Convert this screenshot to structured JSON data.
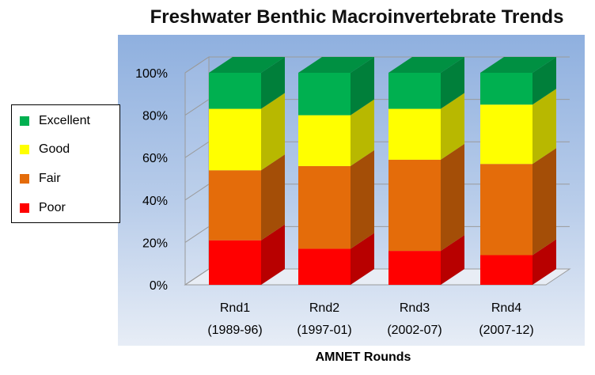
{
  "chart_data": {
    "type": "bar",
    "stacked": true,
    "three_d": true,
    "title": "Freshwater Benthic Macroinvertebrate Trends",
    "xlabel": "AMNET Rounds",
    "ylabel": "",
    "ylim": [
      0,
      100
    ],
    "yticks": [
      "0%",
      "20%",
      "40%",
      "60%",
      "80%",
      "100%"
    ],
    "ytick_values": [
      0,
      20,
      40,
      60,
      80,
      100
    ],
    "legend_position": "left",
    "grid": true,
    "categories": [
      [
        "Rnd1",
        "(1989-96)"
      ],
      [
        "Rnd2",
        "(1997-01)"
      ],
      [
        "Rnd3",
        "(2002-07)"
      ],
      [
        "Rnd4",
        "(2007-12)"
      ]
    ],
    "series": [
      {
        "name": "Poor",
        "color": "#ff0000",
        "values": [
          21,
          17,
          16,
          14
        ]
      },
      {
        "name": "Fair",
        "color": "#e46c0a",
        "values": [
          33,
          39,
          43,
          43
        ]
      },
      {
        "name": "Good",
        "color": "#ffff00",
        "values": [
          29,
          24,
          24,
          28
        ]
      },
      {
        "name": "Excellent",
        "color": "#00b050",
        "values": [
          17,
          20,
          17,
          15
        ]
      }
    ]
  }
}
